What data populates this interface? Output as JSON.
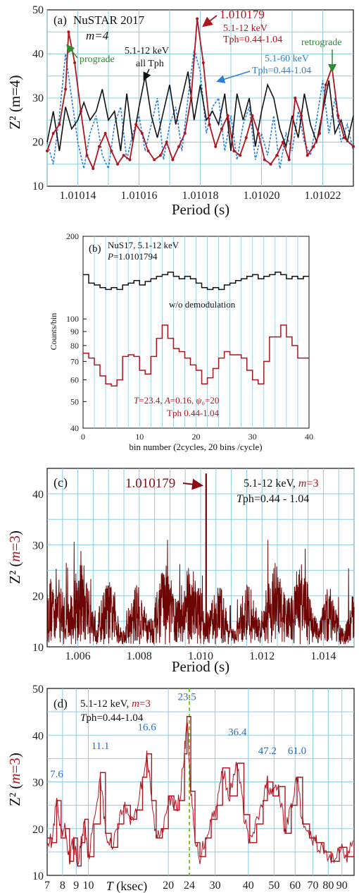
{
  "chart_data": [
    {
      "panel": "(a)",
      "type": "line",
      "title": "NuSTAR 2017",
      "subtitle": "m=4",
      "xlabel": "Period (s)",
      "ylabel": "Z² (m=4)",
      "xlim": [
        1.01013,
        1.01023
      ],
      "ylim": [
        10,
        50
      ],
      "x_ticks": [
        "1.01014",
        "1.01016",
        "1.01018",
        "1.01020",
        "1.01022"
      ],
      "y_ticks": [
        "10",
        "20",
        "30",
        "40",
        "50"
      ],
      "grid": true,
      "annotations": {
        "prograde": "prograde",
        "retrograde": "retrograde",
        "peak_period": "1.010179",
        "red_label_1": "5.1-12 keV",
        "red_label_2": "Tph=0.44-1.04",
        "black_label_1": "5.1-12 keV",
        "black_label_2": "all Tph",
        "blue_label_1": "5.1-60 keV",
        "blue_label_2": "Tph=0.44-1.04"
      },
      "colors": {
        "red": "#b0141e",
        "black": "#111111",
        "blue": "#2a7fd9",
        "green": "#2f8a2f"
      },
      "series": [
        {
          "color": "red",
          "x": [
            1.01013,
            1.010132,
            1.010134,
            1.010136,
            1.010137,
            1.010139,
            1.010141,
            1.010143,
            1.010145,
            1.010147,
            1.010149,
            1.010151,
            1.010153,
            1.010155,
            1.010157,
            1.010159,
            1.010161,
            1.010163,
            1.010165,
            1.010167,
            1.010169,
            1.010171,
            1.010173,
            1.010175,
            1.010177,
            1.010179,
            1.010181,
            1.010183,
            1.010185,
            1.010187,
            1.010189,
            1.010191,
            1.010193,
            1.010195,
            1.010197,
            1.010199,
            1.010201,
            1.010203,
            1.010205,
            1.010207,
            1.010209,
            1.010211,
            1.010213,
            1.010215,
            1.010217,
            1.010219,
            1.010221,
            1.010223,
            1.010225,
            1.010227,
            1.01023
          ],
          "y": [
            18,
            22,
            24,
            32,
            45,
            38,
            27,
            17,
            14,
            19,
            22,
            18,
            15,
            17,
            16,
            24,
            22,
            18,
            16,
            17,
            20,
            16,
            19,
            22,
            30,
            48,
            38,
            24,
            19,
            23,
            26,
            18,
            17,
            21,
            26,
            22,
            16,
            15,
            17,
            20,
            16,
            30,
            26,
            17,
            19,
            22,
            33,
            37,
            26,
            21,
            19
          ]
        },
        {
          "color": "black",
          "x": [
            1.01013,
            1.010132,
            1.010134,
            1.010136,
            1.010138,
            1.01014,
            1.010142,
            1.010144,
            1.010146,
            1.010148,
            1.01015,
            1.010152,
            1.010154,
            1.010156,
            1.010158,
            1.01016,
            1.010162,
            1.010164,
            1.010166,
            1.010168,
            1.01017,
            1.010172,
            1.010174,
            1.010176,
            1.010178,
            1.01018,
            1.010182,
            1.010184,
            1.010186,
            1.010188,
            1.01019,
            1.010192,
            1.010194,
            1.010196,
            1.010198,
            1.0102,
            1.010202,
            1.010204,
            1.010206,
            1.010208,
            1.01021,
            1.010212,
            1.010214,
            1.010216,
            1.010218,
            1.01022,
            1.010222,
            1.010224,
            1.010226,
            1.010228,
            1.01023
          ],
          "y": [
            20,
            27,
            18,
            28,
            23,
            25,
            29,
            25,
            27,
            32,
            25,
            27,
            18,
            31,
            20,
            28,
            35,
            26,
            21,
            27,
            33,
            24,
            30,
            36,
            25,
            33,
            25,
            27,
            24,
            31,
            18,
            31,
            25,
            30,
            19,
            27,
            33,
            30,
            23,
            19,
            26,
            21,
            31,
            24,
            20,
            27,
            34,
            22,
            25,
            20,
            26
          ]
        },
        {
          "color": "blue",
          "dashed": true,
          "x": [
            1.01013,
            1.010132,
            1.010134,
            1.010136,
            1.010138,
            1.01014,
            1.010142,
            1.010144,
            1.010146,
            1.010148,
            1.01015,
            1.010152,
            1.010154,
            1.010156,
            1.010158,
            1.01016,
            1.010162,
            1.010164,
            1.010166,
            1.010168,
            1.01017,
            1.010172,
            1.010174,
            1.010176,
            1.010178,
            1.01018,
            1.010182,
            1.010184,
            1.010186,
            1.010188,
            1.01019,
            1.010192,
            1.010194,
            1.010196,
            1.010198,
            1.0102,
            1.010202,
            1.010204,
            1.010206,
            1.010208,
            1.01021,
            1.010212,
            1.010214,
            1.010216,
            1.010218,
            1.01022,
            1.010222,
            1.010224,
            1.010226,
            1.010228,
            1.01023
          ],
          "y": [
            20,
            15,
            26,
            40,
            30,
            20,
            14,
            22,
            26,
            17,
            14,
            24,
            28,
            16,
            22,
            26,
            18,
            24,
            30,
            16,
            24,
            28,
            18,
            30,
            41,
            36,
            22,
            28,
            30,
            18,
            26,
            16,
            24,
            28,
            16,
            22,
            17,
            26,
            14,
            22,
            18,
            27,
            20,
            17,
            25,
            34,
            22,
            30,
            20,
            24,
            18
          ]
        }
      ]
    },
    {
      "panel": "(b)",
      "type": "line",
      "title": "NuS17, 5.1-12 keV",
      "subtitle": "P=1.0101794",
      "xlabel": "bin number (2cycles, 20 bins /cycle)",
      "ylabel": "Counts/bin",
      "xlim": [
        0,
        40
      ],
      "ylim": [
        40,
        200
      ],
      "log_y": true,
      "x_ticks": [
        "0",
        "10",
        "20",
        "30",
        "40"
      ],
      "y_ticks": [
        "40",
        "50",
        "60",
        "70",
        "80",
        "90",
        "100",
        "200"
      ],
      "annotations": {
        "black_label": "w/o demodulation",
        "red_label_1": "T=23.4,  A=0.16,  ψ₀=20",
        "red_label_2": "Tph 0.44-1.04"
      },
      "series": [
        {
          "color": "black",
          "step": true,
          "x": [
            0,
            1,
            2,
            3,
            4,
            5,
            6,
            7,
            8,
            9,
            10,
            11,
            12,
            13,
            14,
            15,
            16,
            17,
            18,
            19,
            20,
            21,
            22,
            23,
            24,
            25,
            26,
            27,
            28,
            29,
            30,
            31,
            32,
            33,
            34,
            35,
            36,
            37,
            38,
            39
          ],
          "y": [
            145,
            135,
            133,
            130,
            128,
            130,
            128,
            133,
            135,
            138,
            133,
            137,
            140,
            143,
            145,
            148,
            143,
            140,
            143,
            140,
            135,
            130,
            128,
            130,
            128,
            133,
            135,
            138,
            140,
            143,
            145,
            140,
            143,
            145,
            148,
            145,
            140,
            143,
            140,
            143
          ]
        },
        {
          "color": "red",
          "step": true,
          "x": [
            0,
            1,
            2,
            3,
            4,
            5,
            6,
            7,
            8,
            9,
            10,
            11,
            12,
            13,
            14,
            15,
            16,
            17,
            18,
            19,
            20,
            21,
            22,
            23,
            24,
            25,
            26,
            27,
            28,
            29,
            30,
            31,
            32,
            33,
            34,
            35,
            36,
            37,
            38,
            39
          ],
          "y": [
            75,
            72,
            68,
            62,
            58,
            57,
            60,
            73,
            74,
            73,
            65,
            63,
            73,
            85,
            95,
            85,
            78,
            76,
            72,
            68,
            65,
            58,
            61,
            66,
            72,
            76,
            74,
            74,
            72,
            65,
            60,
            58,
            70,
            86,
            86,
            95,
            86,
            80,
            72,
            72
          ]
        }
      ]
    },
    {
      "panel": "(c)",
      "type": "line",
      "xlabel": "Period (s)",
      "ylabel": "Z² (m=3)",
      "xlim": [
        1.005,
        1.015
      ],
      "ylim": [
        10,
        45
      ],
      "x_ticks": [
        "1.006",
        "1.008",
        "1.010",
        "1.012",
        "1.014"
      ],
      "y_ticks": [
        "10",
        "20",
        "30",
        "40"
      ],
      "grid": true,
      "annotations": {
        "peak_period": "1.010179",
        "label_1": "5.1-12 keV, m=3",
        "label_2": "Tph=0.44 - 1.04"
      },
      "series": [
        {
          "color": "darkred",
          "noise": true,
          "peak_x": 1.010179,
          "peak_y": 44,
          "baseline": 18
        }
      ]
    },
    {
      "panel": "(d)",
      "type": "line",
      "xlabel": "T (ksec)",
      "ylabel": "Z² (m=3)",
      "log_x": true,
      "xlim": [
        7,
        100
      ],
      "ylim": [
        10,
        50
      ],
      "x_ticks": [
        "7",
        "8",
        "9",
        "10",
        "20",
        "24",
        "30",
        "40",
        "50",
        "60",
        "70",
        "80",
        "90"
      ],
      "y_ticks": [
        "10",
        "20",
        "30",
        "40",
        "50"
      ],
      "grid": true,
      "annotations": {
        "label_1": "5.1-12 keV, m=3",
        "label_2": "Tph=0.44-1.04",
        "peaks": [
          "7.6",
          "11.1",
          "16.6",
          "23.5",
          "36.4",
          "47.2",
          "61.0"
        ],
        "marker": "24"
      },
      "series": [
        {
          "color": "red",
          "step": true,
          "x": [
            7.0,
            7.3,
            7.6,
            7.9,
            8.2,
            8.5,
            8.8,
            9.1,
            9.4,
            9.7,
            10.0,
            10.5,
            11.1,
            11.6,
            12.2,
            12.9,
            13.6,
            14.4,
            15.2,
            16.0,
            16.6,
            17.3,
            18.0,
            19.0,
            20.0,
            21.0,
            22.0,
            23.0,
            23.5,
            24.3,
            25.2,
            26.3,
            27.6,
            29.0,
            30.5,
            32.0,
            34.0,
            36.4,
            38.5,
            40.5,
            43.0,
            45.5,
            47.2,
            49.5,
            52.0,
            55.0,
            58.0,
            61.0,
            64.0,
            68.0,
            72.0,
            77.0,
            82.0,
            88.0,
            94.0,
            100.0
          ],
          "y": [
            18,
            17,
            26,
            18,
            20,
            13,
            18,
            12,
            17,
            22,
            14,
            21,
            32,
            19,
            16,
            21,
            25,
            22,
            24,
            31,
            36,
            26,
            18,
            20,
            27,
            24,
            26,
            36,
            44,
            28,
            17,
            14,
            18,
            22,
            25,
            33,
            27,
            34,
            23,
            17,
            21,
            26,
            30,
            27,
            29,
            19,
            25,
            31,
            21,
            18,
            17,
            15,
            13,
            16,
            14,
            17
          ]
        }
      ]
    }
  ]
}
